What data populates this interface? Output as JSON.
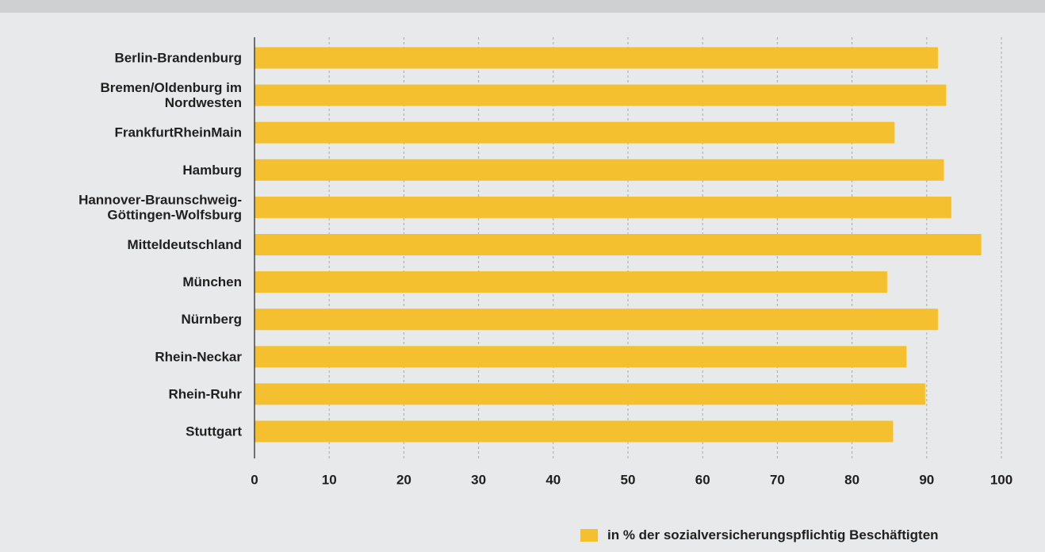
{
  "colors": {
    "bar": "#f4c030",
    "grid": "#a8a8a8",
    "axis": "#1f1f1f",
    "background": "#e8e9ea",
    "top_band": "#cfd0d2"
  },
  "chart_data": {
    "type": "bar",
    "orientation": "horizontal",
    "categories": [
      [
        "Berlin-Brandenburg"
      ],
      [
        "Bremen/Oldenburg im",
        "Nordwesten"
      ],
      [
        "FrankfurtRheinMain"
      ],
      [
        "Hamburg"
      ],
      [
        "Hannover-Braunschweig-",
        "Göttingen-Wolfsburg"
      ],
      [
        "Mitteldeutschland"
      ],
      [
        "München"
      ],
      [
        "Nürnberg"
      ],
      [
        "Rhein-Neckar"
      ],
      [
        "Rhein-Ruhr"
      ],
      [
        "Stuttgart"
      ]
    ],
    "values": [
      91.5,
      92.6,
      85.7,
      92.3,
      93.3,
      97.3,
      84.7,
      91.5,
      87.3,
      89.8,
      85.5
    ],
    "xlim": [
      0,
      100
    ],
    "xticks": [
      0,
      10,
      20,
      30,
      40,
      50,
      60,
      70,
      80,
      90,
      100
    ],
    "grid": "vertical-dashed",
    "legend_position": "bottom-right",
    "series": [
      {
        "name": "in % der sozialversicherungspflichtig Beschäftigten"
      }
    ]
  }
}
